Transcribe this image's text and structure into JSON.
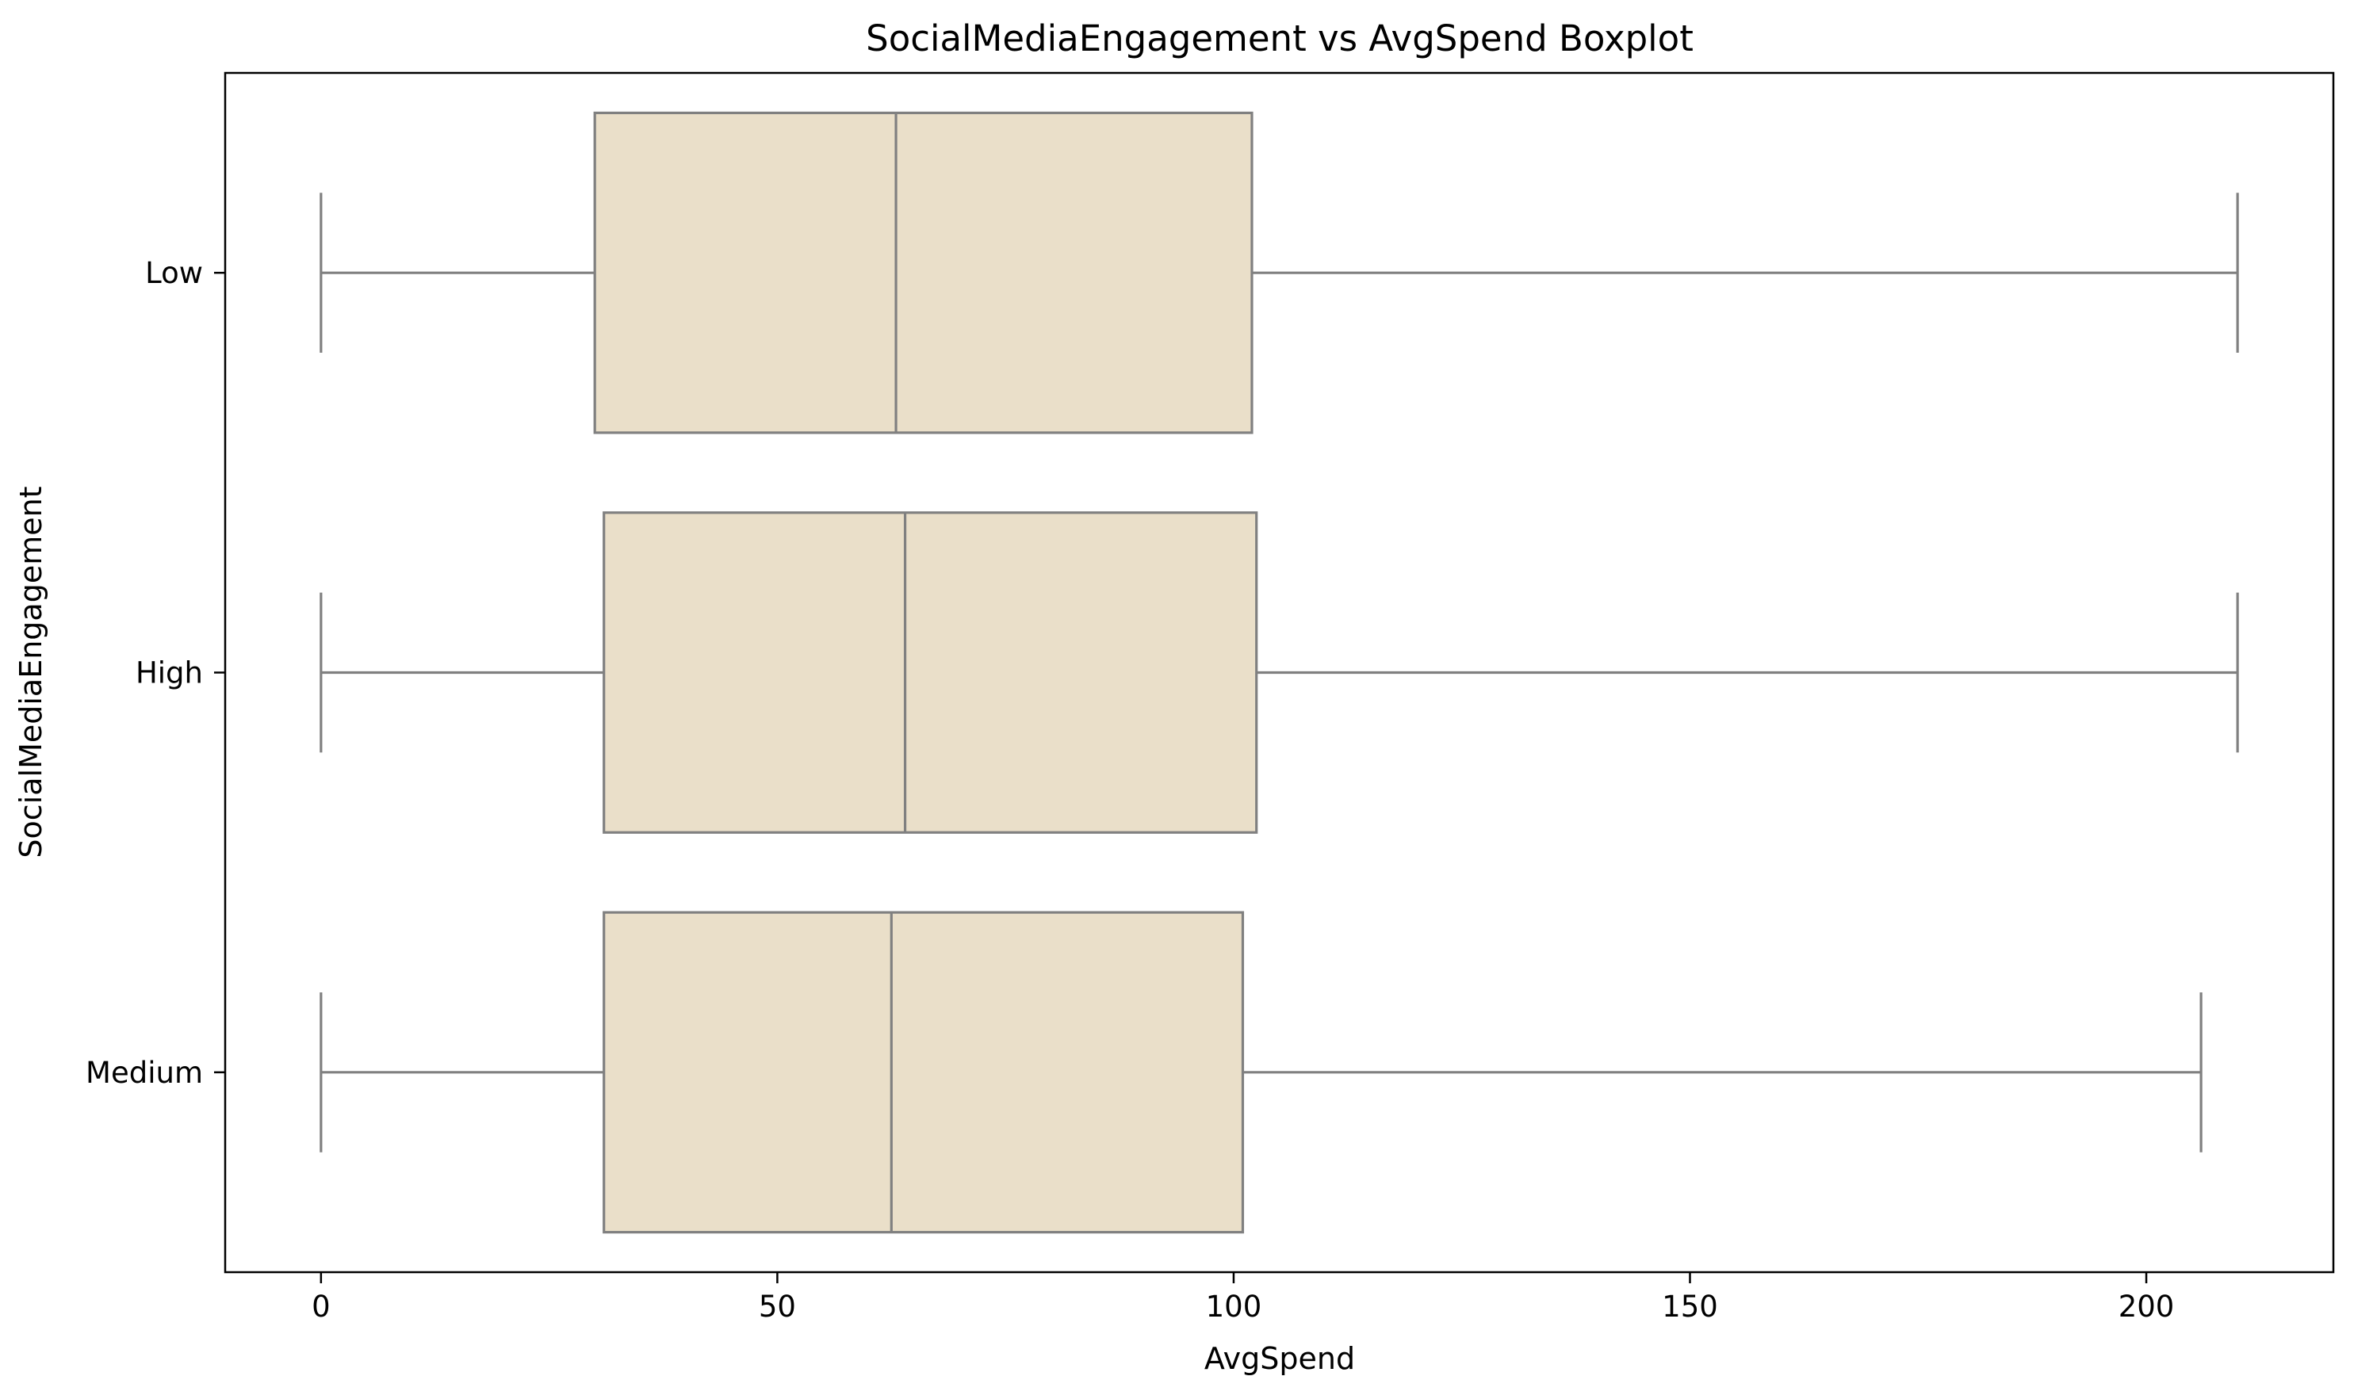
{
  "chart_data": {
    "type": "boxplot",
    "orientation": "horizontal",
    "title": "SocialMediaEngagement vs AvgSpend Boxplot",
    "xlabel": "AvgSpend",
    "ylabel": "SocialMediaEngagement",
    "xlim": [
      -10.5,
      220.5
    ],
    "x_ticks": [
      0,
      50,
      100,
      150,
      200
    ],
    "categories": [
      "Low",
      "High",
      "Medium"
    ],
    "boxes": [
      {
        "category": "Low",
        "whisker_low": 0,
        "q1": 30,
        "median": 63,
        "q3": 102,
        "whisker_high": 210
      },
      {
        "category": "High",
        "whisker_low": 0,
        "q1": 31,
        "median": 64,
        "q3": 102.5,
        "whisker_high": 210
      },
      {
        "category": "Medium",
        "whisker_low": 0,
        "q1": 31,
        "median": 62.5,
        "q3": 101,
        "whisker_high": 206
      }
    ],
    "grid": false,
    "colors": {
      "box_fill": "#eadfc9",
      "box_edge": "#808080",
      "axes": "#000000"
    }
  }
}
